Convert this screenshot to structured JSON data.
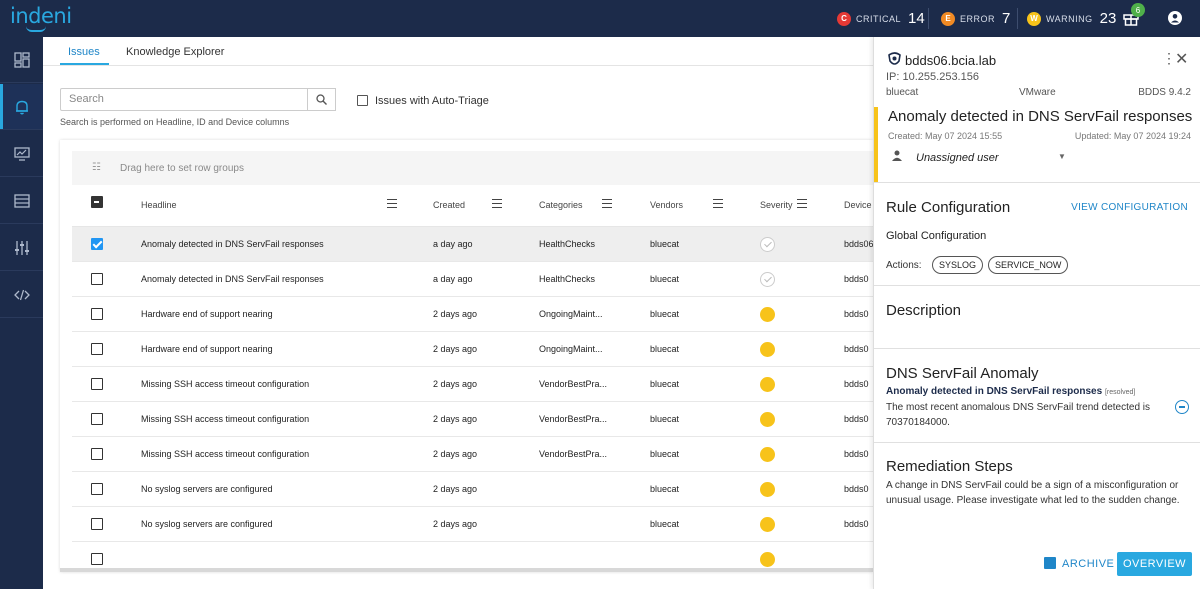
{
  "app": {
    "logo": "indeni"
  },
  "header": {
    "counters": [
      {
        "letter": "C",
        "label": "CRITICAL",
        "count": "14",
        "color": "#e53935"
      },
      {
        "letter": "E",
        "label": "ERROR",
        "count": "7",
        "color": "#f08a24"
      },
      {
        "letter": "W",
        "label": "WARNING",
        "count": "23",
        "color": "#f7c31a"
      }
    ],
    "gift_badge": "6"
  },
  "tabs": [
    {
      "label": "Issues",
      "active": true
    },
    {
      "label": "Knowledge Explorer",
      "active": false
    }
  ],
  "search": {
    "placeholder": "Search",
    "hint": "Search is performed on Headline, ID and Device columns",
    "auto_triage_label": "Issues with Auto-Triage"
  },
  "grid": {
    "group_hint": "Drag here to set row groups",
    "columns": [
      "Headline",
      "Created",
      "Categories",
      "Vendors",
      "Severity",
      "Device"
    ],
    "rows": [
      {
        "headline": "Anomaly detected in DNS ServFail responses",
        "created": "a day ago",
        "category": "HealthChecks",
        "vendor": "bluecat",
        "severity": "resolved",
        "device": "bdds06",
        "checked": true
      },
      {
        "headline": "Anomaly detected in DNS ServFail responses",
        "created": "a day ago",
        "category": "HealthChecks",
        "vendor": "bluecat",
        "severity": "resolved",
        "device": "bdds0",
        "checked": false
      },
      {
        "headline": "Hardware end of support nearing",
        "created": "2 days ago",
        "category": "OngoingMaint...",
        "vendor": "bluecat",
        "severity": "warning",
        "device": "bdds0",
        "checked": false
      },
      {
        "headline": "Hardware end of support nearing",
        "created": "2 days ago",
        "category": "OngoingMaint...",
        "vendor": "bluecat",
        "severity": "warning",
        "device": "bdds0",
        "checked": false
      },
      {
        "headline": "Missing SSH access timeout configuration",
        "created": "2 days ago",
        "category": "VendorBestPra...",
        "vendor": "bluecat",
        "severity": "warning",
        "device": "bdds0",
        "checked": false
      },
      {
        "headline": "Missing SSH access timeout configuration",
        "created": "2 days ago",
        "category": "VendorBestPra...",
        "vendor": "bluecat",
        "severity": "warning",
        "device": "bdds0",
        "checked": false
      },
      {
        "headline": "Missing SSH access timeout configuration",
        "created": "2 days ago",
        "category": "VendorBestPra...",
        "vendor": "bluecat",
        "severity": "warning",
        "device": "bdds0",
        "checked": false
      },
      {
        "headline": "No syslog servers are configured",
        "created": "2 days ago",
        "category": "",
        "vendor": "bluecat",
        "severity": "warning",
        "device": "bdds0",
        "checked": false
      },
      {
        "headline": "No syslog servers are configured",
        "created": "2 days ago",
        "category": "",
        "vendor": "bluecat",
        "severity": "warning",
        "device": "bdds0",
        "checked": false
      }
    ]
  },
  "panel": {
    "device_name": "bdds06.bcia.lab",
    "ip": "IP: 10.255.253.156",
    "vendor": "bluecat",
    "os": "VMware",
    "version": "BDDS 9.4.2",
    "issue_title": "Anomaly detected in DNS ServFail responses",
    "created": "Created: May 07 2024 15:55",
    "updated": "Updated: May 07 2024 19:24",
    "assignee": "Unassigned user",
    "rule_config_title": "Rule Configuration",
    "view_config": "VIEW CONFIGURATION",
    "global_config": "Global Configuration",
    "actions_label": "Actions:",
    "actions": [
      "SYSLOG",
      "SERVICE_NOW"
    ],
    "description_title": "Description",
    "anomaly_title": "DNS ServFail Anomaly",
    "anomaly_headline": "Anomaly detected in DNS ServFail responses",
    "anomaly_status": "[resolved]",
    "anomaly_text": "The most recent anomalous DNS ServFail trend detected is 70370184000.",
    "remediation_title": "Remediation Steps",
    "remediation_text": "A change in DNS ServFail could be a sign of a misconfiguration or unusual usage. Please investigate what led to the sudden change.",
    "archive_label": "ARCHIVE",
    "overview_label": "OVERVIEW"
  }
}
